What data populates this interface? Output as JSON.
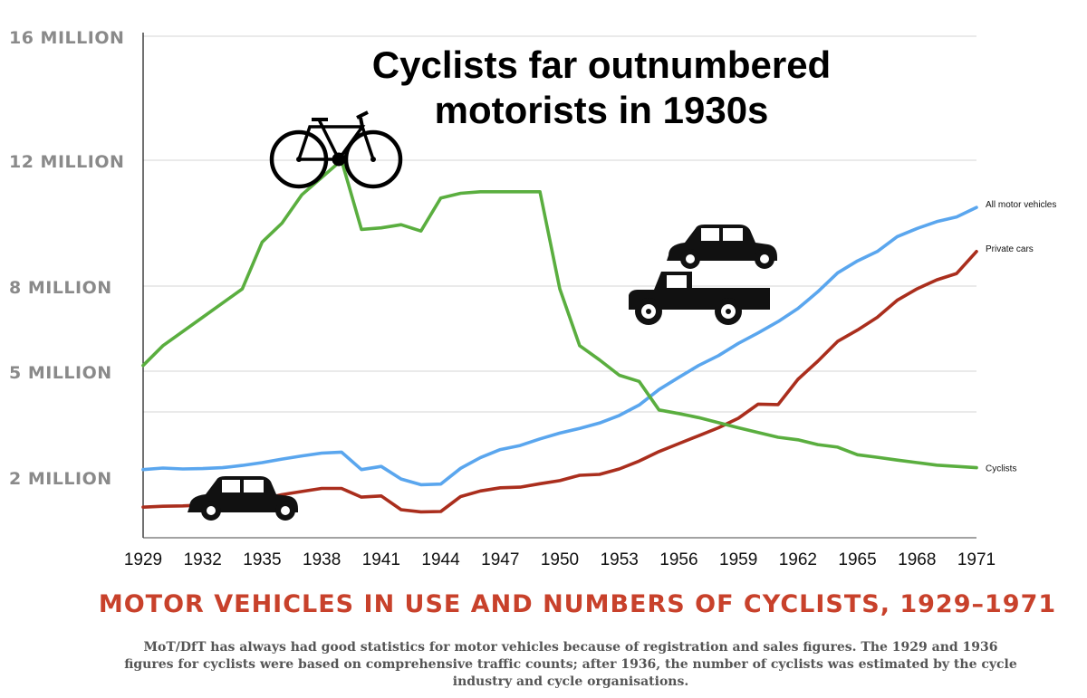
{
  "chart_data": {
    "type": "line",
    "title": "Cyclists far outnumbered motorists in 1930s",
    "caption": "MOTOR VEHICLES IN USE AND NUMBERS OF CYCLISTS, 1929–1971",
    "note": "MoT/DfT has always had good statistics for motor vehicles because of registration and sales figures. The 1929 and 1936 figures for cyclists were based on comprehensive traffic counts; after 1936, the number of cyclists was estimated by the cycle industry and cycle organisations.",
    "xlabel": "",
    "ylabel": "",
    "y_ticks": [
      {
        "value": 2000000,
        "label": "2 MILLION"
      },
      {
        "value": 5000000,
        "label": "5 MILLION"
      },
      {
        "value": 8000000,
        "label": "8 MILLION"
      },
      {
        "value": 12000000,
        "label": "12 MILLION"
      },
      {
        "value": 16000000,
        "label": "16 MILLION"
      }
    ],
    "extra_gridlines": [
      4000000
    ],
    "x_ticks": [
      "1929",
      "1932",
      "1935",
      "1938",
      "1941",
      "1944",
      "1947",
      "1950",
      "1953",
      "1956",
      "1959",
      "1962",
      "1965",
      "1968",
      "1971"
    ],
    "xlim": [
      1929,
      1971
    ],
    "grid": true,
    "series": [
      {
        "name": "All motor vehicles",
        "color": "#5aa6ee",
        "x": [
          1929,
          1930,
          1931,
          1932,
          1933,
          1934,
          1935,
          1936,
          1937,
          1938,
          1939,
          1940,
          1941,
          1942,
          1943,
          1944,
          1945,
          1946,
          1947,
          1948,
          1949,
          1950,
          1951,
          1952,
          1953,
          1954,
          1955,
          1956,
          1957,
          1958,
          1959,
          1960,
          1961,
          1962,
          1963,
          1964,
          1965,
          1966,
          1967,
          1968,
          1969,
          1970,
          1971
        ],
        "values": [
          2180000,
          2230000,
          2200000,
          2210000,
          2240000,
          2310000,
          2400000,
          2510000,
          2610000,
          2700000,
          2730000,
          2180000,
          2280000,
          1880000,
          1700000,
          1720000,
          2220000,
          2560000,
          2810000,
          2940000,
          3150000,
          3330000,
          3480000,
          3650000,
          3890000,
          4170000,
          4550000,
          4850000,
          5200000,
          5550000,
          5980000,
          6350000,
          6750000,
          7210000,
          7800000,
          8420000,
          8800000,
          9100000,
          9570000,
          9830000,
          10050000,
          10200000,
          10500000
        ]
      },
      {
        "name": "Private cars",
        "color": "#aa2e1d",
        "x": [
          1929,
          1930,
          1931,
          1932,
          1933,
          1934,
          1935,
          1936,
          1937,
          1938,
          1939,
          1940,
          1941,
          1942,
          1943,
          1944,
          1945,
          1946,
          1947,
          1948,
          1949,
          1950,
          1951,
          1952,
          1953,
          1954,
          1955,
          1956,
          1957,
          1958,
          1959,
          1960,
          1961,
          1962,
          1963,
          1964,
          1965,
          1966,
          1967,
          1968,
          1969,
          1970,
          1971
        ],
        "values": [
          980000,
          1010000,
          1020000,
          1050000,
          1100000,
          1150000,
          1240000,
          1380000,
          1480000,
          1580000,
          1580000,
          1300000,
          1340000,
          900000,
          830000,
          840000,
          1320000,
          1500000,
          1600000,
          1620000,
          1730000,
          1830000,
          2000000,
          2030000,
          2200000,
          2450000,
          2750000,
          3000000,
          3250000,
          3500000,
          3800000,
          4190000,
          4180000,
          4800000,
          5350000,
          6050000,
          6450000,
          6900000,
          7500000,
          7900000,
          8200000,
          8400000,
          9100000
        ]
      },
      {
        "name": "Cyclists",
        "color": "#5aae3f",
        "x": [
          1929,
          1930,
          1932,
          1934,
          1935,
          1936,
          1937,
          1939,
          1940,
          1941,
          1942,
          1943,
          1944,
          1945,
          1946,
          1949,
          1950,
          1951,
          1952,
          1953,
          1954,
          1955,
          1956,
          1957,
          1958,
          1959,
          1960,
          1961,
          1962,
          1963,
          1964,
          1965,
          1966,
          1967,
          1968,
          1969,
          1970,
          1971
        ],
        "values": [
          5200000,
          5900000,
          6900000,
          7900000,
          9400000,
          10000000,
          10900000,
          12000000,
          9800000,
          9850000,
          9950000,
          9750000,
          10800000,
          10950000,
          11000000,
          11000000,
          7900000,
          5900000,
          5400000,
          4900000,
          4750000,
          4050000,
          3950000,
          3820000,
          3660000,
          3500000,
          3350000,
          3200000,
          3120000,
          2970000,
          2890000,
          2650000,
          2570000,
          2480000,
          2400000,
          2320000,
          2280000,
          2240000
        ]
      }
    ],
    "icons": [
      "bicycle-icon",
      "vintage-car-icon",
      "pickup-truck-icon"
    ]
  }
}
